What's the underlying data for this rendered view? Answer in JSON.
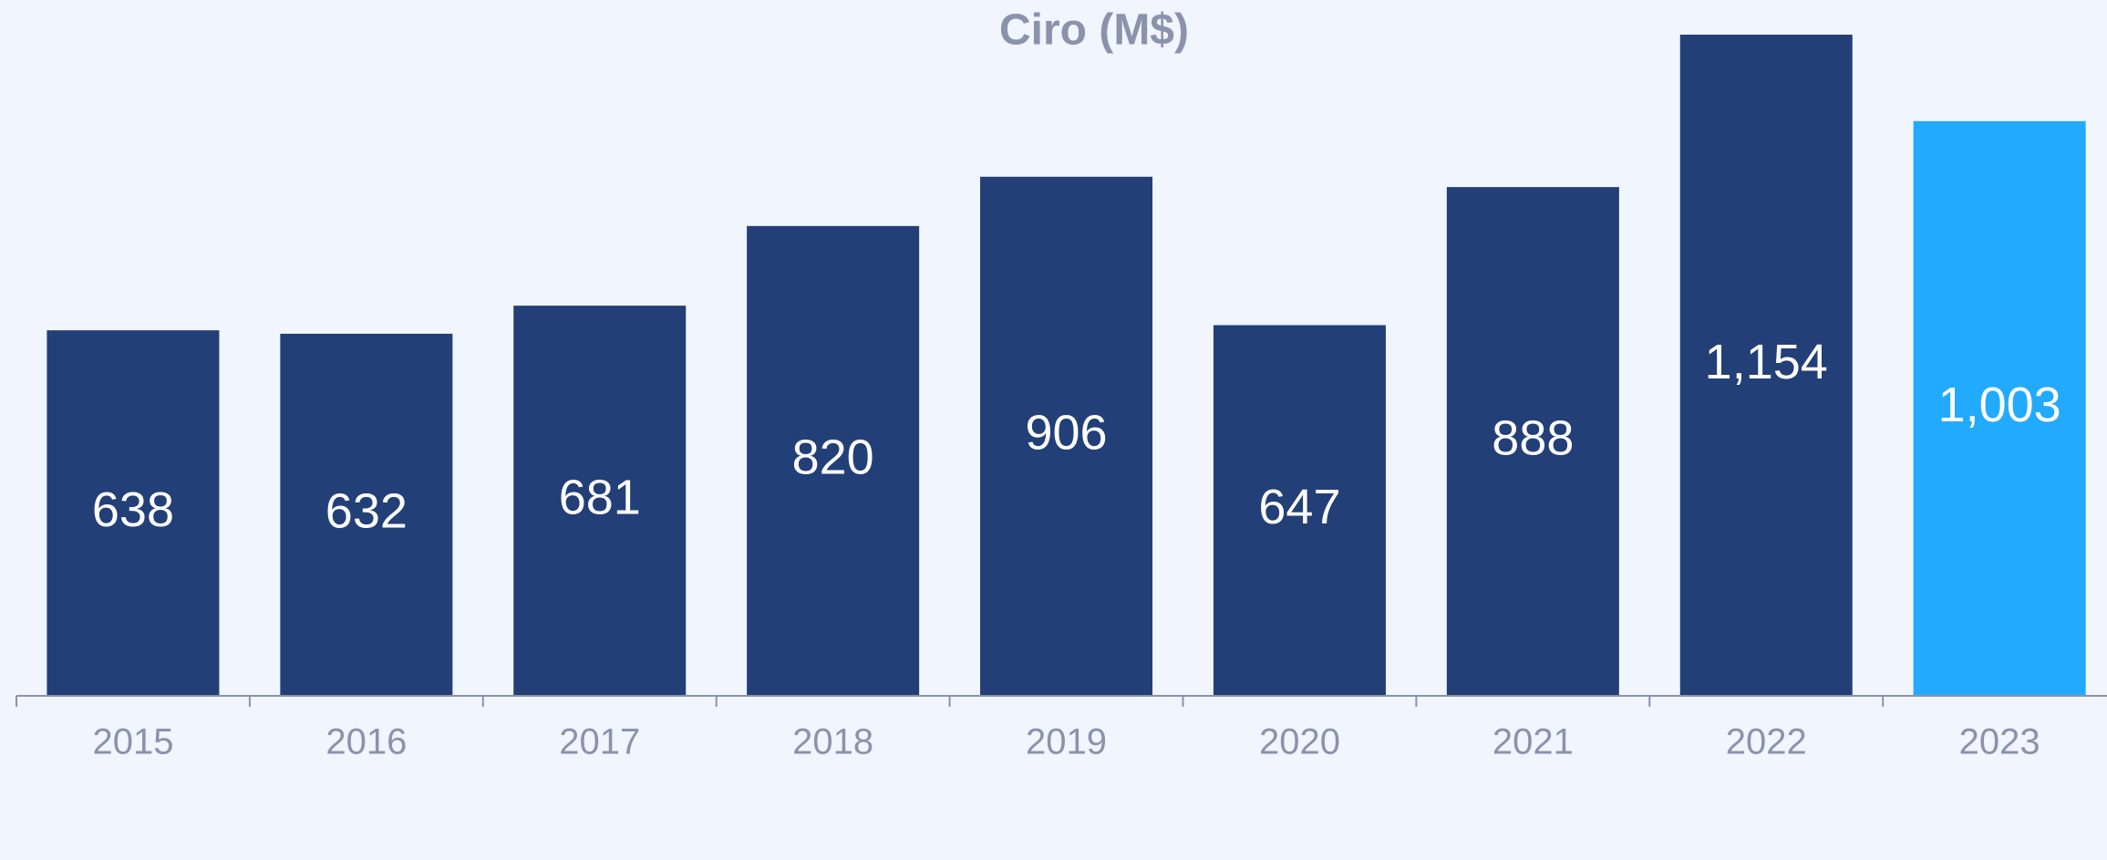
{
  "chart_data": {
    "type": "bar",
    "title": "Ciro (M$)",
    "categories": [
      "2015",
      "2016",
      "2017",
      "2018",
      "2019",
      "2020",
      "2021",
      "2022",
      "2023"
    ],
    "values": [
      638,
      632,
      681,
      820,
      906,
      647,
      888,
      1154,
      1003
    ],
    "value_labels": [
      "638",
      "632",
      "681",
      "820",
      "906",
      "647",
      "888",
      "1,154",
      "1,003"
    ],
    "colors": [
      "#233f77",
      "#233f77",
      "#233f77",
      "#233f77",
      "#233f77",
      "#233f77",
      "#233f77",
      "#233f77",
      "#22aaff"
    ]
  }
}
